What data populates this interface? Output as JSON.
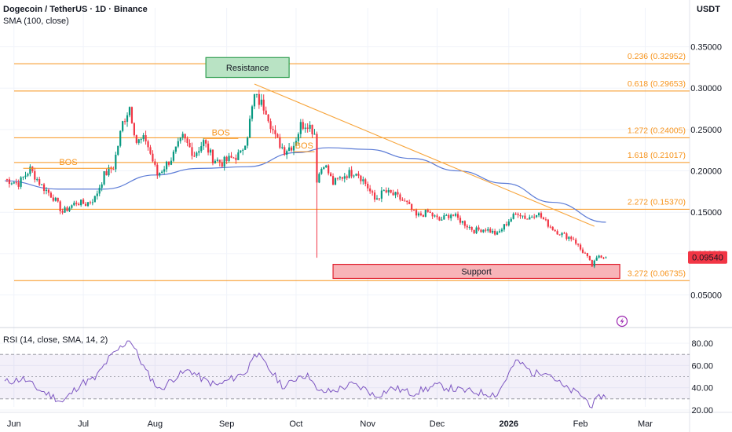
{
  "header": {
    "title": "Dogecoin / TetherUS · 1D · Binance",
    "indicator": "SMA (100, close)",
    "currency": "USDT"
  },
  "rsi_panel": {
    "label": "RSI (14, close, SMA, 14, 2)"
  },
  "colors": {
    "up": "#089981",
    "down": "#f23645",
    "sma": "#5b7bd6",
    "fib": "#f7931a",
    "trendline": "#f7a43a",
    "rsi": "#7e57c2",
    "resistance_fill": "#b9e3c4",
    "resistance_border": "#2e9e4f",
    "support_fill": "#f8b4b8",
    "support_border": "#e0202e",
    "price_label": "#f23645"
  },
  "chart_data": [
    {
      "type": "candlestick",
      "title": "Dogecoin / TetherUS · 1D · Binance",
      "x_tick_labels": [
        "Jun",
        "Jul",
        "Aug",
        "Sep",
        "Oct",
        "Nov",
        "Dec",
        "2026",
        "Feb",
        "Mar"
      ],
      "y_tick_labels": [
        "0.35000",
        "0.30000",
        "0.25000",
        "0.20000",
        "0.15000",
        "0.10000",
        "0.05000"
      ],
      "ylim": [
        0.028,
        0.375
      ],
      "log_scale": false,
      "grid": true,
      "last_price": "0.09540",
      "ohlc_anchor_points": [
        {
          "date": "2025-05-28",
          "close": 0.19
        },
        {
          "date": "2025-06-03",
          "close": 0.185
        },
        {
          "date": "2025-06-08",
          "close": 0.202
        },
        {
          "date": "2025-06-13",
          "close": 0.182
        },
        {
          "date": "2025-06-18",
          "close": 0.168
        },
        {
          "date": "2025-06-22",
          "close": 0.15
        },
        {
          "date": "2025-06-28",
          "close": 0.162
        },
        {
          "date": "2025-07-02",
          "close": 0.16
        },
        {
          "date": "2025-07-06",
          "close": 0.167
        },
        {
          "date": "2025-07-10",
          "close": 0.195
        },
        {
          "date": "2025-07-14",
          "close": 0.205
        },
        {
          "date": "2025-07-18",
          "close": 0.258
        },
        {
          "date": "2025-07-21",
          "close": 0.278
        },
        {
          "date": "2025-07-24",
          "close": 0.235
        },
        {
          "date": "2025-07-28",
          "close": 0.238
        },
        {
          "date": "2025-08-02",
          "close": 0.195
        },
        {
          "date": "2025-08-08",
          "close": 0.215
        },
        {
          "date": "2025-08-13",
          "close": 0.24
        },
        {
          "date": "2025-08-18",
          "close": 0.22
        },
        {
          "date": "2025-08-22",
          "close": 0.235
        },
        {
          "date": "2025-08-26",
          "close": 0.215
        },
        {
          "date": "2025-08-30",
          "close": 0.21
        },
        {
          "date": "2025-09-03",
          "close": 0.215
        },
        {
          "date": "2025-09-07",
          "close": 0.22
        },
        {
          "date": "2025-09-10",
          "close": 0.245
        },
        {
          "date": "2025-09-13",
          "close": 0.29
        },
        {
          "date": "2025-09-18",
          "close": 0.275
        },
        {
          "date": "2025-09-22",
          "close": 0.24
        },
        {
          "date": "2025-09-26",
          "close": 0.225
        },
        {
          "date": "2025-09-30",
          "close": 0.232
        },
        {
          "date": "2025-10-03",
          "close": 0.255
        },
        {
          "date": "2025-10-06",
          "close": 0.258
        },
        {
          "date": "2025-10-09",
          "close": 0.246
        },
        {
          "date": "2025-10-10",
          "close": 0.19
        },
        {
          "date": "2025-10-13",
          "close": 0.21
        },
        {
          "date": "2025-10-17",
          "close": 0.185
        },
        {
          "date": "2025-10-22",
          "close": 0.195
        },
        {
          "date": "2025-10-27",
          "close": 0.2
        },
        {
          "date": "2025-10-31",
          "close": 0.185
        },
        {
          "date": "2025-11-04",
          "close": 0.165
        },
        {
          "date": "2025-11-08",
          "close": 0.175
        },
        {
          "date": "2025-11-13",
          "close": 0.17
        },
        {
          "date": "2025-11-18",
          "close": 0.16
        },
        {
          "date": "2025-11-22",
          "close": 0.145
        },
        {
          "date": "2025-11-27",
          "close": 0.15
        },
        {
          "date": "2025-12-02",
          "close": 0.14
        },
        {
          "date": "2025-12-07",
          "close": 0.148
        },
        {
          "date": "2025-12-12",
          "close": 0.138
        },
        {
          "date": "2025-12-17",
          "close": 0.128
        },
        {
          "date": "2025-12-22",
          "close": 0.13
        },
        {
          "date": "2025-12-27",
          "close": 0.123
        },
        {
          "date": "2026-01-01",
          "close": 0.14
        },
        {
          "date": "2026-01-05",
          "close": 0.15
        },
        {
          "date": "2026-01-09",
          "close": 0.142
        },
        {
          "date": "2026-01-13",
          "close": 0.15
        },
        {
          "date": "2026-01-17",
          "close": 0.138
        },
        {
          "date": "2026-01-21",
          "close": 0.128
        },
        {
          "date": "2026-01-25",
          "close": 0.122
        },
        {
          "date": "2026-01-29",
          "close": 0.118
        },
        {
          "date": "2026-02-01",
          "close": 0.105
        },
        {
          "date": "2026-02-03",
          "close": 0.1
        },
        {
          "date": "2026-02-06",
          "close": 0.085
        },
        {
          "date": "2026-02-09",
          "close": 0.098
        },
        {
          "date": "2026-02-12",
          "close": 0.0954
        }
      ],
      "events": [
        {
          "date": "2025-10-10",
          "low": 0.095,
          "label": ""
        }
      ],
      "sma": {
        "name": "SMA (100, close)",
        "points": [
          {
            "date": "2025-05-28",
            "value": 0.188
          },
          {
            "date": "2025-06-20",
            "value": 0.178
          },
          {
            "date": "2025-07-10",
            "value": 0.178
          },
          {
            "date": "2025-08-01",
            "value": 0.195
          },
          {
            "date": "2025-08-20",
            "value": 0.203
          },
          {
            "date": "2025-09-10",
            "value": 0.205
          },
          {
            "date": "2025-10-01",
            "value": 0.222
          },
          {
            "date": "2025-10-15",
            "value": 0.228
          },
          {
            "date": "2025-11-01",
            "value": 0.226
          },
          {
            "date": "2025-11-20",
            "value": 0.215
          },
          {
            "date": "2025-12-10",
            "value": 0.2
          },
          {
            "date": "2025-12-30",
            "value": 0.185
          },
          {
            "date": "2026-01-20",
            "value": 0.162
          },
          {
            "date": "2026-02-12",
            "value": 0.138
          }
        ]
      },
      "fib_levels": [
        {
          "label": "0.236 (0.32952)",
          "value": 0.32952
        },
        {
          "label": "0.618 (0.29653)",
          "value": 0.29653
        },
        {
          "label": "1.272 (0.24005)",
          "value": 0.24005
        },
        {
          "label": "1.618 (0.21017)",
          "value": 0.21017
        },
        {
          "label": "2.272 (0.15370)",
          "value": 0.1537
        },
        {
          "label": "3.272 (0.06735)",
          "value": 0.06735
        }
      ],
      "zones": [
        {
          "label": "Resistance",
          "from": 0.313,
          "to": 0.337,
          "start": "2025-08-23",
          "end": "2025-09-28"
        },
        {
          "label": "Support",
          "from": 0.07,
          "to": 0.087,
          "start": "2025-10-17",
          "end": "2026-02-18"
        }
      ],
      "annotations": [
        {
          "text": "BOS",
          "date": "2025-06-18",
          "value": 0.207
        },
        {
          "text": "BOS",
          "date": "2025-08-29",
          "value": 0.243
        },
        {
          "text": "BOS",
          "date": "2025-10-02",
          "value": 0.227
        }
      ],
      "trendline": {
        "start": {
          "date": "2025-09-13",
          "value": 0.305
        },
        "end": {
          "date": "2026-02-07",
          "value": 0.133
        }
      }
    },
    {
      "type": "line",
      "title": "RSI (14, close, SMA, 14, 2)",
      "y_tick_labels": [
        "80.00",
        "60.00",
        "40.00",
        "20.00"
      ],
      "ylim": [
        17,
        87
      ],
      "overbought": 70,
      "oversold": 30,
      "midline": 50,
      "series": [
        {
          "name": "RSI",
          "points": [
            {
              "date": "2025-05-28",
              "value": 45
            },
            {
              "date": "2025-06-05",
              "value": 48
            },
            {
              "date": "2025-06-12",
              "value": 38
            },
            {
              "date": "2025-06-18",
              "value": 32
            },
            {
              "date": "2025-06-22",
              "value": 27
            },
            {
              "date": "2025-06-30",
              "value": 44
            },
            {
              "date": "2025-07-06",
              "value": 48
            },
            {
              "date": "2025-07-12",
              "value": 66
            },
            {
              "date": "2025-07-18",
              "value": 78
            },
            {
              "date": "2025-07-21",
              "value": 84
            },
            {
              "date": "2025-07-28",
              "value": 55
            },
            {
              "date": "2025-08-03",
              "value": 38
            },
            {
              "date": "2025-08-10",
              "value": 50
            },
            {
              "date": "2025-08-16",
              "value": 56
            },
            {
              "date": "2025-08-22",
              "value": 47
            },
            {
              "date": "2025-08-28",
              "value": 42
            },
            {
              "date": "2025-09-03",
              "value": 48
            },
            {
              "date": "2025-09-10",
              "value": 55
            },
            {
              "date": "2025-09-13",
              "value": 73
            },
            {
              "date": "2025-09-20",
              "value": 55
            },
            {
              "date": "2025-09-26",
              "value": 40
            },
            {
              "date": "2025-10-03",
              "value": 52
            },
            {
              "date": "2025-10-08",
              "value": 49
            },
            {
              "date": "2025-10-10",
              "value": 36
            },
            {
              "date": "2025-10-17",
              "value": 37
            },
            {
              "date": "2025-10-25",
              "value": 43
            },
            {
              "date": "2025-11-01",
              "value": 38
            },
            {
              "date": "2025-11-04",
              "value": 32
            },
            {
              "date": "2025-11-12",
              "value": 40
            },
            {
              "date": "2025-11-20",
              "value": 35
            },
            {
              "date": "2025-12-01",
              "value": 42
            },
            {
              "date": "2025-12-10",
              "value": 38
            },
            {
              "date": "2025-12-18",
              "value": 36
            },
            {
              "date": "2025-12-27",
              "value": 34
            },
            {
              "date": "2026-01-03",
              "value": 60
            },
            {
              "date": "2026-01-05",
              "value": 64
            },
            {
              "date": "2026-01-12",
              "value": 52
            },
            {
              "date": "2026-01-17",
              "value": 56
            },
            {
              "date": "2026-01-25",
              "value": 40
            },
            {
              "date": "2026-02-01",
              "value": 34
            },
            {
              "date": "2026-02-06",
              "value": 24
            },
            {
              "date": "2026-02-10",
              "value": 33
            },
            {
              "date": "2026-02-12",
              "value": 31
            }
          ]
        }
      ]
    }
  ]
}
